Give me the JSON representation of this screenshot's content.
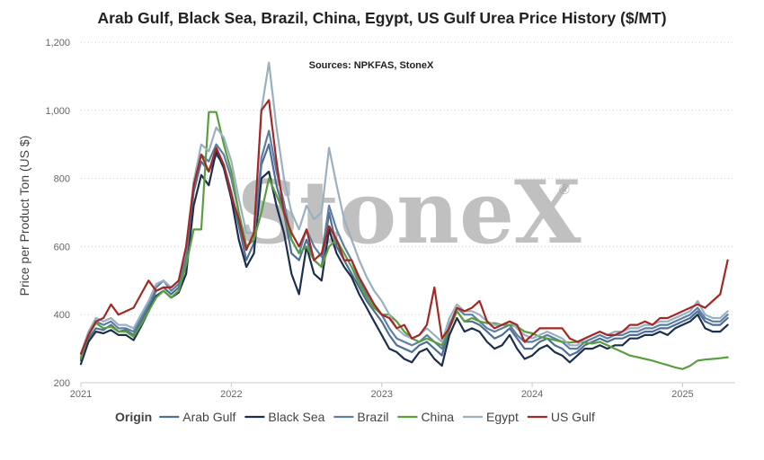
{
  "chart_data": {
    "type": "line",
    "title": "Arab Gulf, Black Sea, Brazil, China, Egypt, US Gulf Urea Price History ($/MT)",
    "subtitle": "Sources: NPKFAS, StoneX",
    "ylabel": "Price per Product Ton (US $)",
    "xlabel": "",
    "watermark": "StoneX",
    "watermark_mark": "®",
    "ylim": [
      200,
      1200
    ],
    "yticks": [
      {
        "value": 200,
        "label": "200"
      },
      {
        "value": 400,
        "label": "400"
      },
      {
        "value": 600,
        "label": "600"
      },
      {
        "value": 800,
        "label": "800"
      },
      {
        "value": 1000,
        "label": "1,000"
      },
      {
        "value": 1200,
        "label": "1,200"
      }
    ],
    "xlim": [
      2021.0,
      2025.35
    ],
    "xticks": [
      {
        "value": 2021,
        "label": "2021"
      },
      {
        "value": 2022,
        "label": "2022"
      },
      {
        "value": 2023,
        "label": "2023"
      },
      {
        "value": 2024,
        "label": "2024"
      },
      {
        "value": 2025,
        "label": "2025"
      }
    ],
    "grid": true,
    "legend": {
      "title": "Origin",
      "position": "bottom"
    },
    "series": [
      {
        "name": "Arab Gulf",
        "color": "#4f6f95",
        "x": [
          2021.0,
          2021.05,
          2021.1,
          2021.15,
          2021.2,
          2021.25,
          2021.3,
          2021.35,
          2021.4,
          2021.45,
          2021.5,
          2021.55,
          2021.6,
          2021.65,
          2021.7,
          2021.75,
          2021.8,
          2021.85,
          2021.9,
          2021.95,
          2022.0,
          2022.05,
          2022.1,
          2022.15,
          2022.2,
          2022.25,
          2022.3,
          2022.35,
          2022.4,
          2022.45,
          2022.5,
          2022.55,
          2022.6,
          2022.65,
          2022.7,
          2022.75,
          2022.8,
          2022.85,
          2022.9,
          2022.95,
          2023.0,
          2023.05,
          2023.1,
          2023.15,
          2023.2,
          2023.25,
          2023.3,
          2023.35,
          2023.4,
          2023.45,
          2023.5,
          2023.55,
          2023.6,
          2023.65,
          2023.7,
          2023.75,
          2023.8,
          2023.85,
          2023.9,
          2023.95,
          2024.0,
          2024.05,
          2024.1,
          2024.15,
          2024.2,
          2024.25,
          2024.3,
          2024.35,
          2024.4,
          2024.45,
          2024.5,
          2024.55,
          2024.6,
          2024.65,
          2024.7,
          2024.75,
          2024.8,
          2024.85,
          2024.9,
          2024.95,
          2025.0,
          2025.05,
          2025.1,
          2025.15,
          2025.2,
          2025.25,
          2025.3
        ],
        "y": [
          265,
          330,
          360,
          355,
          370,
          350,
          355,
          340,
          380,
          420,
          470,
          480,
          460,
          480,
          560,
          760,
          850,
          820,
          870,
          840,
          760,
          660,
          560,
          610,
          840,
          900,
          780,
          700,
          580,
          560,
          620,
          560,
          540,
          700,
          600,
          560,
          520,
          480,
          440,
          410,
          380,
          340,
          310,
          300,
          290,
          310,
          320,
          300,
          280,
          360,
          410,
          380,
          380,
          370,
          350,
          330,
          340,
          360,
          330,
          300,
          300,
          320,
          330,
          310,
          300,
          280,
          290,
          310,
          320,
          330,
          320,
          330,
          330,
          340,
          340,
          350,
          350,
          360,
          360,
          370,
          380,
          390,
          410,
          380,
          370,
          370,
          390
        ]
      },
      {
        "name": "Black Sea",
        "color": "#1c2f4d",
        "x": [
          2021.0,
          2021.05,
          2021.1,
          2021.15,
          2021.2,
          2021.25,
          2021.3,
          2021.35,
          2021.4,
          2021.45,
          2021.5,
          2021.55,
          2021.6,
          2021.65,
          2021.7,
          2021.75,
          2021.8,
          2021.85,
          2021.9,
          2021.95,
          2022.0,
          2022.05,
          2022.1,
          2022.15,
          2022.2,
          2022.25,
          2022.3,
          2022.35,
          2022.4,
          2022.45,
          2022.5,
          2022.55,
          2022.6,
          2022.65,
          2022.7,
          2022.75,
          2022.8,
          2022.85,
          2022.9,
          2022.95,
          2023.0,
          2023.05,
          2023.1,
          2023.15,
          2023.2,
          2023.25,
          2023.3,
          2023.35,
          2023.4,
          2023.45,
          2023.5,
          2023.55,
          2023.6,
          2023.65,
          2023.7,
          2023.75,
          2023.8,
          2023.85,
          2023.9,
          2023.95,
          2024.0,
          2024.05,
          2024.1,
          2024.15,
          2024.2,
          2024.25,
          2024.3,
          2024.35,
          2024.4,
          2024.45,
          2024.5,
          2024.55,
          2024.6,
          2024.65,
          2024.7,
          2024.75,
          2024.8,
          2024.85,
          2024.9,
          2024.95,
          2025.0,
          2025.05,
          2025.1,
          2025.15,
          2025.2,
          2025.25,
          2025.3
        ],
        "y": [
          255,
          320,
          350,
          345,
          355,
          340,
          340,
          325,
          365,
          410,
          455,
          470,
          450,
          465,
          520,
          720,
          810,
          780,
          880,
          830,
          740,
          620,
          540,
          580,
          800,
          820,
          720,
          640,
          520,
          460,
          600,
          520,
          500,
          650,
          580,
          540,
          510,
          460,
          420,
          380,
          340,
          300,
          290,
          270,
          260,
          290,
          300,
          270,
          250,
          340,
          390,
          350,
          360,
          350,
          320,
          300,
          310,
          340,
          300,
          270,
          280,
          300,
          310,
          290,
          280,
          260,
          280,
          300,
          300,
          310,
          300,
          310,
          310,
          330,
          330,
          340,
          340,
          350,
          340,
          360,
          370,
          380,
          400,
          360,
          350,
          350,
          370
        ]
      },
      {
        "name": "Brazil",
        "color": "#5d7fa6",
        "x": [
          2021.0,
          2021.05,
          2021.1,
          2021.15,
          2021.2,
          2021.25,
          2021.3,
          2021.35,
          2021.4,
          2021.45,
          2021.5,
          2021.55,
          2021.6,
          2021.65,
          2021.7,
          2021.75,
          2021.8,
          2021.85,
          2021.9,
          2021.95,
          2022.0,
          2022.05,
          2022.1,
          2022.15,
          2022.2,
          2022.25,
          2022.3,
          2022.35,
          2022.4,
          2022.45,
          2022.5,
          2022.55,
          2022.6,
          2022.65,
          2022.7,
          2022.75,
          2022.8,
          2022.85,
          2022.9,
          2022.95,
          2023.0,
          2023.05,
          2023.1,
          2023.15,
          2023.2,
          2023.25,
          2023.3,
          2023.35,
          2023.4,
          2023.45,
          2023.5,
          2023.55,
          2023.6,
          2023.65,
          2023.7,
          2023.75,
          2023.8,
          2023.85,
          2023.9,
          2023.95,
          2024.0,
          2024.05,
          2024.1,
          2024.15,
          2024.2,
          2024.25,
          2024.3,
          2024.35,
          2024.4,
          2024.45,
          2024.5,
          2024.55,
          2024.6,
          2024.65,
          2024.7,
          2024.75,
          2024.8,
          2024.85,
          2024.9,
          2024.95,
          2025.0,
          2025.05,
          2025.1,
          2025.15,
          2025.2,
          2025.25,
          2025.3
        ],
        "y": [
          270,
          340,
          380,
          370,
          380,
          360,
          360,
          350,
          390,
          430,
          480,
          500,
          470,
          490,
          570,
          780,
          870,
          850,
          900,
          870,
          800,
          700,
          600,
          620,
          860,
          940,
          820,
          730,
          620,
          580,
          650,
          600,
          570,
          720,
          650,
          600,
          560,
          500,
          460,
          430,
          400,
          360,
          330,
          320,
          310,
          320,
          340,
          320,
          300,
          370,
          420,
          400,
          400,
          380,
          360,
          350,
          360,
          370,
          340,
          320,
          320,
          330,
          340,
          330,
          320,
          300,
          300,
          320,
          330,
          340,
          330,
          340,
          340,
          350,
          350,
          360,
          360,
          370,
          370,
          380,
          390,
          400,
          420,
          390,
          380,
          380,
          400
        ]
      },
      {
        "name": "China",
        "color": "#5a9e3f",
        "x": [
          2021.0,
          2021.05,
          2021.1,
          2021.15,
          2021.2,
          2021.25,
          2021.3,
          2021.35,
          2021.4,
          2021.45,
          2021.5,
          2021.55,
          2021.6,
          2021.65,
          2021.7,
          2021.75,
          2021.8,
          2021.85,
          2021.9,
          2021.95,
          2022.0,
          2022.05,
          2022.1,
          2022.15,
          2022.2,
          2022.25,
          2022.3,
          2022.35,
          2022.4,
          2022.45,
          2022.5,
          2022.55,
          2022.6,
          2022.65,
          2022.7,
          2022.75,
          2022.8,
          2022.85,
          2022.9,
          2022.95,
          2023.0,
          2023.05,
          2023.1,
          2023.15,
          2023.2,
          2023.25,
          2023.3,
          2023.35,
          2023.4,
          2023.45,
          2023.5,
          2023.55,
          2023.6,
          2023.65,
          2023.7,
          2023.75,
          2023.8,
          2023.85,
          2023.9,
          2023.95,
          2024.0,
          2024.05,
          2024.1,
          2024.15,
          2024.2,
          2024.25,
          2024.3,
          2024.35,
          2024.4,
          2024.45,
          2024.5,
          2024.55,
          2024.6,
          2024.65,
          2024.7,
          2024.75,
          2024.8,
          2024.85,
          2024.9,
          2024.95,
          2025.0,
          2025.05,
          2025.1,
          2025.15,
          2025.2,
          2025.25,
          2025.3
        ],
        "y": [
          275,
          340,
          375,
          360,
          365,
          350,
          350,
          335,
          370,
          410,
          450,
          470,
          450,
          470,
          545,
          650,
          650,
          995,
          995,
          900,
          820,
          700,
          600,
          620,
          700,
          800,
          750,
          700,
          620,
          580,
          600,
          560,
          540,
          600,
          620,
          580,
          540,
          490,
          450,
          420,
          400,
          400,
          380,
          350,
          330,
          320,
          330,
          320,
          310,
          360,
          410,
          380,
          390,
          380,
          375,
          375,
          370,
          370,
          365,
          350,
          345,
          335,
          330,
          325,
          320,
          318,
          320,
          318,
          315,
          320,
          310,
          300,
          290,
          280,
          275,
          270,
          265,
          258,
          252,
          245,
          240,
          250,
          265,
          268,
          270,
          272,
          275
        ]
      },
      {
        "name": "Egypt",
        "color": "#9ab0c0",
        "x": [
          2021.0,
          2021.05,
          2021.1,
          2021.15,
          2021.2,
          2021.25,
          2021.3,
          2021.35,
          2021.4,
          2021.45,
          2021.5,
          2021.55,
          2021.6,
          2021.65,
          2021.7,
          2021.75,
          2021.8,
          2021.85,
          2021.9,
          2021.95,
          2022.0,
          2022.05,
          2022.1,
          2022.15,
          2022.2,
          2022.25,
          2022.3,
          2022.35,
          2022.4,
          2022.45,
          2022.5,
          2022.55,
          2022.6,
          2022.65,
          2022.7,
          2022.75,
          2022.8,
          2022.85,
          2022.9,
          2022.95,
          2023.0,
          2023.05,
          2023.1,
          2023.15,
          2023.2,
          2023.25,
          2023.3,
          2023.35,
          2023.4,
          2023.45,
          2023.5,
          2023.55,
          2023.6,
          2023.65,
          2023.7,
          2023.75,
          2023.8,
          2023.85,
          2023.9,
          2023.95,
          2024.0,
          2024.05,
          2024.1,
          2024.15,
          2024.2,
          2024.25,
          2024.3,
          2024.35,
          2024.4,
          2024.45,
          2024.5,
          2024.55,
          2024.6,
          2024.65,
          2024.7,
          2024.75,
          2024.8,
          2024.85,
          2024.9,
          2024.95,
          2025.0,
          2025.05,
          2025.1,
          2025.15,
          2025.2,
          2025.25,
          2025.3
        ],
        "y": [
          285,
          350,
          390,
          380,
          390,
          370,
          370,
          360,
          400,
          440,
          490,
          500,
          480,
          500,
          600,
          790,
          900,
          880,
          950,
          920,
          850,
          740,
          640,
          640,
          1000,
          1140,
          950,
          800,
          700,
          650,
          720,
          680,
          700,
          890,
          780,
          680,
          620,
          560,
          510,
          470,
          440,
          400,
          360,
          340,
          330,
          340,
          360,
          340,
          320,
          390,
          430,
          410,
          410,
          400,
          380,
          370,
          370,
          380,
          360,
          340,
          330,
          340,
          350,
          340,
          330,
          310,
          310,
          330,
          340,
          350,
          340,
          350,
          350,
          360,
          360,
          370,
          370,
          380,
          380,
          390,
          400,
          410,
          440,
          400,
          390,
          390,
          410
        ]
      },
      {
        "name": "US Gulf",
        "color": "#a32a24",
        "x": [
          2021.0,
          2021.05,
          2021.1,
          2021.15,
          2021.2,
          2021.25,
          2021.3,
          2021.35,
          2021.4,
          2021.45,
          2021.5,
          2021.55,
          2021.6,
          2021.65,
          2021.7,
          2021.75,
          2021.8,
          2021.85,
          2021.9,
          2021.95,
          2022.0,
          2022.05,
          2022.1,
          2022.15,
          2022.2,
          2022.25,
          2022.3,
          2022.35,
          2022.4,
          2022.45,
          2022.5,
          2022.55,
          2022.6,
          2022.65,
          2022.7,
          2022.75,
          2022.8,
          2022.85,
          2022.9,
          2022.95,
          2023.0,
          2023.05,
          2023.1,
          2023.15,
          2023.2,
          2023.25,
          2023.3,
          2023.35,
          2023.4,
          2023.45,
          2023.5,
          2023.55,
          2023.6,
          2023.65,
          2023.7,
          2023.75,
          2023.8,
          2023.85,
          2023.9,
          2023.95,
          2024.0,
          2024.05,
          2024.1,
          2024.15,
          2024.2,
          2024.25,
          2024.3,
          2024.35,
          2024.4,
          2024.45,
          2024.5,
          2024.55,
          2024.6,
          2024.65,
          2024.7,
          2024.75,
          2024.8,
          2024.85,
          2024.9,
          2024.95,
          2025.0,
          2025.05,
          2025.1,
          2025.15,
          2025.2,
          2025.25,
          2025.3
        ],
        "y": [
          285,
          340,
          380,
          390,
          430,
          400,
          410,
          420,
          460,
          500,
          470,
          480,
          480,
          500,
          600,
          780,
          870,
          820,
          890,
          840,
          750,
          680,
          590,
          640,
          1000,
          1030,
          850,
          700,
          640,
          600,
          650,
          560,
          580,
          660,
          620,
          560,
          560,
          510,
          470,
          430,
          400,
          390,
          360,
          370,
          330,
          340,
          370,
          480,
          330,
          360,
          420,
          410,
          420,
          440,
          380,
          360,
          370,
          380,
          370,
          320,
          340,
          360,
          360,
          360,
          360,
          330,
          320,
          330,
          340,
          350,
          340,
          340,
          350,
          370,
          370,
          380,
          370,
          390,
          390,
          400,
          410,
          420,
          430,
          420,
          440,
          460,
          560
        ]
      }
    ]
  }
}
